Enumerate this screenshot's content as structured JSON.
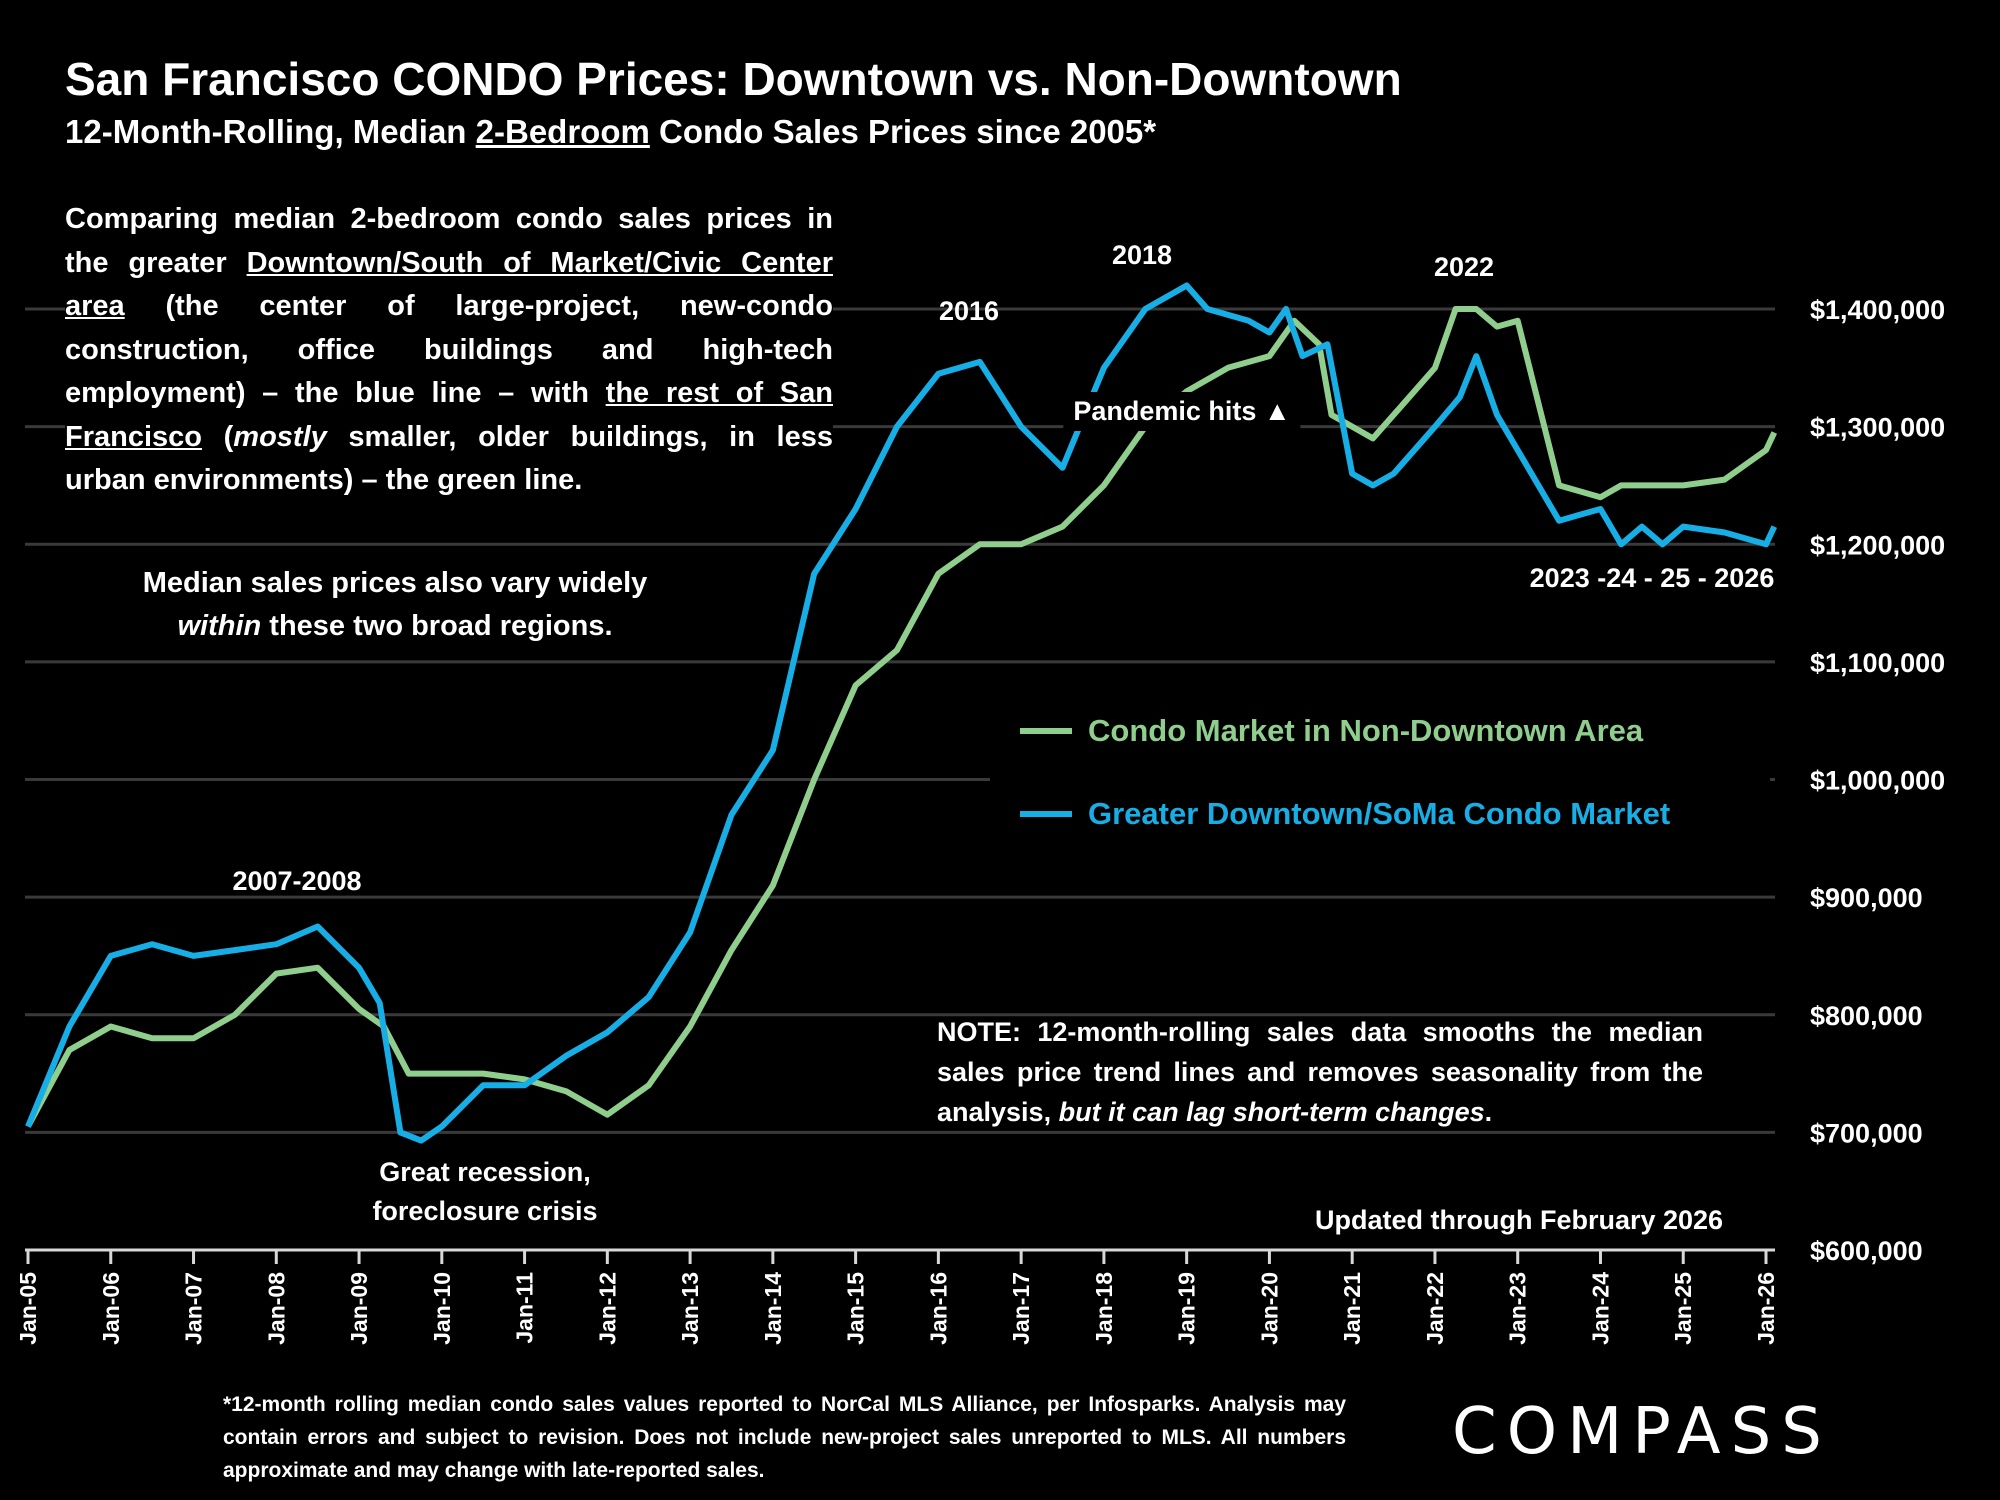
{
  "title": "San Francisco CONDO Prices: Downtown vs. Non-Downtown",
  "subtitle": {
    "pre": "12-Month-Rolling, Median ",
    "underlined": "2-Bedroom",
    "post": " Condo Sales Prices since 2005*"
  },
  "intro": {
    "p1": "Comparing median 2-bedroom condo sales prices in the greater ",
    "u1": "Downtown/South of Market/Civic Center area",
    "p2": " (the center of large-project, new-condo construction, office buildings and high-tech employment) – the blue line – with ",
    "u2": "the rest of San Francisco",
    "p3": " (",
    "i1": "mostly",
    "p4": " smaller, older buildings, in less urban environments) – the green line."
  },
  "vary": {
    "l1": "Median sales prices also vary widely",
    "i1": "within",
    "l2": " these two broad regions."
  },
  "annotations": {
    "a2016": "2016",
    "a2018": "2018",
    "a2022": "2022",
    "a2007": "2007-2008",
    "recession1": "Great recession,",
    "recession2": "foreclosure crisis",
    "pandemic": "Pandemic hits ▲",
    "recent": "2023 -24 - 25 - 2026"
  },
  "note": {
    "pre": "NOTE: 12-month-rolling sales data smooths the median sales price trend lines and removes seasonality from the analysis, ",
    "italic": "but it can lag short-term changes",
    "post": "."
  },
  "updated": "Updated through February 2026",
  "footnote": "*12-month rolling median condo sales values reported to NorCal MLS Alliance, per Infosparks. Analysis may contain errors and subject to revision. Does not include new-project sales unreported to MLS. All numbers approximate and may change with late-reported sales.",
  "logo": "COMPASS",
  "chart_data": {
    "type": "line",
    "title": "San Francisco CONDO Prices: Downtown vs. Non-Downtown",
    "xlim": [
      2005.0,
      2026.17
    ],
    "ylim": [
      600000,
      1400000
    ],
    "grid": true,
    "legend_position": "center-right",
    "x_tick_labels": [
      "Jan-05",
      "Jan-06",
      "Jan-07",
      "Jan-08",
      "Jan-09",
      "Jan-10",
      "Jan-11",
      "Jan-12",
      "Jan-13",
      "Jan-14",
      "Jan-15",
      "Jan-16",
      "Jan-17",
      "Jan-18",
      "Jan-19",
      "Jan-20",
      "Jan-21",
      "Jan-22",
      "Jan-23",
      "Jan-24",
      "Jan-25",
      "Jan-26"
    ],
    "y_tick_labels": [
      "$600,000",
      "$700,000",
      "$800,000",
      "$900,000",
      "$1,000,000",
      "$1,100,000",
      "$1,200,000",
      "$1,300,000",
      "$1,400,000"
    ],
    "y_ticks": [
      600000,
      700000,
      800000,
      900000,
      1000000,
      1100000,
      1200000,
      1300000,
      1400000
    ],
    "series": [
      {
        "name": "Condo Market in Non-Downtown Area",
        "color": "#8fce8c",
        "x": [
          2005.0,
          2005.5,
          2006.0,
          2006.5,
          2007.0,
          2007.5,
          2008.0,
          2008.5,
          2009.0,
          2009.3,
          2009.6,
          2010.0,
          2010.5,
          2011.0,
          2011.5,
          2012.0,
          2012.5,
          2013.0,
          2013.5,
          2014.0,
          2014.5,
          2015.0,
          2015.5,
          2016.0,
          2016.5,
          2017.0,
          2017.5,
          2018.0,
          2018.5,
          2019.0,
          2019.5,
          2020.0,
          2020.3,
          2020.6,
          2020.75,
          2021.0,
          2021.25,
          2021.5,
          2022.0,
          2022.25,
          2022.5,
          2022.75,
          2023.0,
          2023.25,
          2023.5,
          2024.0,
          2024.25,
          2025.0,
          2025.5,
          2026.0,
          2026.1
        ],
        "y": [
          705000,
          770000,
          790000,
          780000,
          780000,
          800000,
          835000,
          840000,
          805000,
          790000,
          750000,
          750000,
          750000,
          745000,
          735000,
          715000,
          740000,
          790000,
          855000,
          910000,
          1000000,
          1080000,
          1110000,
          1175000,
          1200000,
          1200000,
          1215000,
          1250000,
          1300000,
          1330000,
          1350000,
          1360000,
          1390000,
          1370000,
          1310000,
          1300000,
          1290000,
          1310000,
          1350000,
          1400000,
          1400000,
          1385000,
          1390000,
          1320000,
          1250000,
          1240000,
          1250000,
          1250000,
          1255000,
          1280000,
          1295000
        ]
      },
      {
        "name": "Greater Downtown/SoMa Condo Market",
        "color": "#17aee6",
        "x": [
          2005.0,
          2005.5,
          2006.0,
          2006.5,
          2007.0,
          2007.5,
          2008.0,
          2008.5,
          2009.0,
          2009.25,
          2009.5,
          2009.75,
          2010.0,
          2010.5,
          2011.0,
          2011.5,
          2012.0,
          2012.5,
          2013.0,
          2013.5,
          2014.0,
          2014.5,
          2015.0,
          2015.5,
          2016.0,
          2016.5,
          2017.0,
          2017.5,
          2018.0,
          2018.5,
          2019.0,
          2019.25,
          2019.75,
          2020.0,
          2020.2,
          2020.4,
          2020.7,
          2021.0,
          2021.25,
          2021.5,
          2022.0,
          2022.3,
          2022.5,
          2022.75,
          2023.0,
          2023.5,
          2023.75,
          2024.0,
          2024.25,
          2024.5,
          2024.75,
          2025.0,
          2025.5,
          2026.0,
          2026.1
        ],
        "y": [
          705000,
          790000,
          850000,
          860000,
          850000,
          855000,
          860000,
          875000,
          840000,
          810000,
          700000,
          693000,
          705000,
          740000,
          740000,
          765000,
          785000,
          815000,
          870000,
          970000,
          1025000,
          1175000,
          1230000,
          1300000,
          1345000,
          1355000,
          1300000,
          1265000,
          1350000,
          1400000,
          1420000,
          1400000,
          1390000,
          1380000,
          1400000,
          1360000,
          1370000,
          1260000,
          1250000,
          1260000,
          1300000,
          1325000,
          1360000,
          1310000,
          1280000,
          1220000,
          1225000,
          1230000,
          1200000,
          1215000,
          1200000,
          1215000,
          1210000,
          1200000,
          1215000
        ]
      }
    ]
  }
}
